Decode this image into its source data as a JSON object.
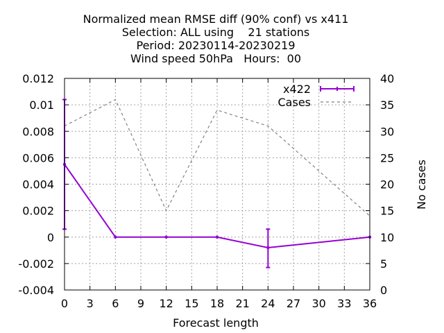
{
  "chart_data": {
    "type": "line",
    "title_lines": [
      "Normalized mean RMSE diff (90% conf) vs x411",
      "Selection: ALL using    21 stations",
      "Period: 20230114-20230219",
      "Wind speed 50hPa   Hours:  00"
    ],
    "xlabel": "Forecast length",
    "ylabel": "",
    "y2label": "No cases",
    "xlim": [
      0,
      36
    ],
    "ylim": [
      -0.004,
      0.012
    ],
    "y2lim": [
      0,
      40
    ],
    "x_ticks": [
      0,
      3,
      6,
      9,
      12,
      15,
      18,
      21,
      24,
      27,
      30,
      33,
      36
    ],
    "y_ticks": [
      -0.004,
      -0.002,
      0,
      0.002,
      0.004,
      0.006,
      0.008,
      0.01,
      0.012
    ],
    "y_tick_labels": [
      "-0.004",
      "-0.002",
      "0",
      "0.002",
      "0.004",
      "0.006",
      "0.008",
      "0.01",
      "0.012"
    ],
    "y2_ticks": [
      0,
      5,
      10,
      15,
      20,
      25,
      30,
      35,
      40
    ],
    "grid": true,
    "legend_position": "top-right",
    "series": [
      {
        "name": "x422",
        "axis": "left",
        "color": "#9400d3",
        "style": "solid-errorbars",
        "x": [
          0,
          6,
          12,
          18,
          24,
          36
        ],
        "y": [
          0.0055,
          0.0,
          0.0,
          0.0,
          -0.0008,
          0.0
        ],
        "err_low": [
          0.0006,
          0.0,
          0.0,
          0.0,
          -0.0023,
          0.0
        ],
        "err_high": [
          0.0104,
          0.0,
          0.0,
          0.0,
          0.0006,
          0.0
        ]
      },
      {
        "name": "Cases",
        "axis": "right",
        "color": "#808080",
        "style": "dashed",
        "x": [
          0,
          6,
          12,
          18,
          24,
          36
        ],
        "y": [
          31,
          36,
          15,
          34,
          31,
          14
        ]
      }
    ]
  }
}
